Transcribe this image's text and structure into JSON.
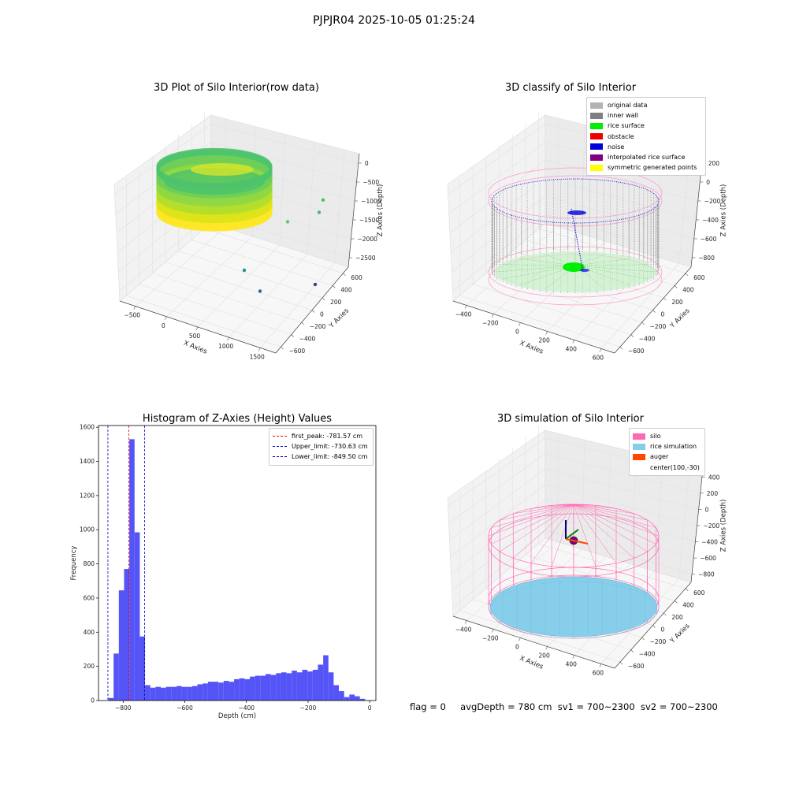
{
  "figure": {
    "suptitle": "PJPJR04 2025-10-05 01:25:24",
    "status": {
      "flag": "flag = 0",
      "avg_depth": "avgDepth = 780 cm",
      "sv1": "sv1 = 700~2300",
      "sv2": "sv2 = 700~2300"
    }
  },
  "chart_data": [
    {
      "type": "scatter",
      "projection": "3d",
      "title": "3D Plot of Silo Interior(row data)",
      "xlabel": "X Axies",
      "ylabel": "Y Axies",
      "zlabel": "Z Axies (Depth)",
      "x_ticks": [
        "−500",
        "0",
        "500",
        "1000",
        "1500"
      ],
      "y_ticks": [
        "−600",
        "−400",
        "−200",
        "0",
        "200",
        "400",
        "600"
      ],
      "z_ticks": [
        "0",
        "−500",
        "−1000",
        "−1500",
        "−2000",
        "−2500"
      ],
      "colormap": "viridis",
      "outliers": [
        {
          "x": 1150,
          "y": 150,
          "z": -1800,
          "color": "#5ec962"
        },
        {
          "x": 1550,
          "y": 500,
          "z": -1900,
          "color": "#3fbc73"
        },
        {
          "x": 1600,
          "y": 650,
          "z": -1750,
          "color": "#4ac16d"
        },
        {
          "x": 600,
          "y": -200,
          "z": -2600,
          "color": "#21908d"
        },
        {
          "x": 800,
          "y": -400,
          "z": -2900,
          "color": "#31688e"
        },
        {
          "x": 1500,
          "y": -450,
          "z": -2700,
          "color": "#443983"
        }
      ]
    },
    {
      "type": "scatter",
      "projection": "3d",
      "title": "3D classify of Silo Interior",
      "xlabel": "X Axies",
      "ylabel": "Y Axies",
      "zlabel": "Z Axies (Depth)",
      "x_ticks": [
        "−400",
        "−200",
        "0",
        "200",
        "400",
        "600"
      ],
      "y_ticks": [
        "−600",
        "−400",
        "−200",
        "0",
        "200",
        "400",
        "600"
      ],
      "z_ticks": [
        "200",
        "0",
        "−200",
        "−400",
        "−600",
        "−800"
      ],
      "legend": [
        {
          "label": "original data",
          "color": "#b3b3b3"
        },
        {
          "label": "inner wall",
          "color": "#808080"
        },
        {
          "label": "rice surface",
          "color": "#00ee00"
        },
        {
          "label": "obstacle",
          "color": "#ee0000"
        },
        {
          "label": "noise",
          "color": "#0000dd"
        },
        {
          "label": "interpolated rice surface",
          "color": "#800080"
        },
        {
          "label": "symmetric generated points",
          "color": "#ffff00"
        }
      ]
    },
    {
      "type": "bar",
      "title": "Histogram of Z-Axies (Height) Values",
      "xlabel": "Depth (cm)",
      "ylabel": "Frequency",
      "xlim": [
        -880,
        20
      ],
      "ylim": [
        0,
        1610
      ],
      "x_ticks": [
        "−800",
        "−600",
        "−400",
        "−200",
        "0"
      ],
      "y_ticks": [
        "0",
        "200",
        "400",
        "600",
        "800",
        "1000",
        "1200",
        "1400",
        "1600"
      ],
      "bar_color": "#4b4bf7",
      "bin_width": 17,
      "bins_start": [
        -848,
        -831,
        -814,
        -797,
        -780,
        -763,
        -746,
        -729,
        -712,
        -695,
        -678,
        -661,
        -644,
        -627,
        -610,
        -593,
        -576,
        -559,
        -542,
        -525,
        -508,
        -491,
        -474,
        -457,
        -440,
        -423,
        -406,
        -389,
        -372,
        -355,
        -338,
        -321,
        -304,
        -287,
        -270,
        -253,
        -236,
        -219,
        -202,
        -185,
        -168,
        -151,
        -134,
        -117,
        -100,
        -83,
        -66,
        -49,
        -32
      ],
      "values": [
        15,
        275,
        645,
        770,
        1530,
        985,
        375,
        90,
        75,
        80,
        75,
        80,
        80,
        85,
        80,
        80,
        85,
        95,
        100,
        110,
        110,
        105,
        115,
        110,
        125,
        130,
        125,
        140,
        145,
        145,
        155,
        150,
        160,
        165,
        160,
        175,
        165,
        180,
        170,
        180,
        210,
        265,
        165,
        90,
        55,
        20,
        35,
        25,
        10
      ],
      "lines": [
        {
          "label": "first_peak: -781.57 cm",
          "x": -781.57,
          "color": "#ee0000"
        },
        {
          "label": "Upper_limit: -730.63 cm",
          "x": -730.63,
          "color": "#0000cc"
        },
        {
          "label": "Lower_limit: -849.50 cm",
          "x": -849.5,
          "color": "#0000cc"
        }
      ]
    },
    {
      "type": "scatter",
      "projection": "3d",
      "title": "3D simulation of Silo Interior",
      "xlabel": "X Axies",
      "ylabel": "Y Axies",
      "zlabel": "Z Axies (Depth)",
      "x_ticks": [
        "−400",
        "−200",
        "0",
        "200",
        "400",
        "600"
      ],
      "y_ticks": [
        "−600",
        "−400",
        "−200",
        "0",
        "200",
        "400",
        "600"
      ],
      "z_ticks": [
        "400",
        "200",
        "0",
        "−200",
        "−400",
        "−600",
        "−800"
      ],
      "legend": [
        {
          "label": "silo",
          "color": "#ff69b4"
        },
        {
          "label": "rice simulation",
          "color": "#87ceeb"
        },
        {
          "label": "auger",
          "color": "#ff4500"
        },
        {
          "label": "center(100,-30)",
          "color": ""
        }
      ]
    }
  ]
}
